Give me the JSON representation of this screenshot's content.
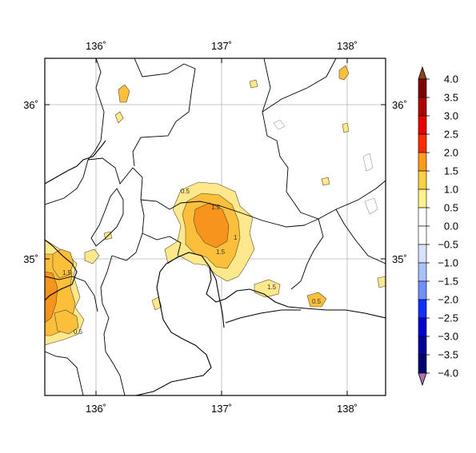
{
  "map": {
    "lon_ticks": [
      "136˚",
      "137˚",
      "138˚"
    ],
    "lat_ticks": [
      "36˚",
      "35˚"
    ],
    "contour_labels": [
      "1.5",
      "0.5",
      "1.5",
      "0.5",
      "1.5",
      "1",
      "1.5",
      "0.5"
    ]
  },
  "colorbar": {
    "labels": [
      "4.0",
      "3.5",
      "3.0",
      "2.5",
      "2.0",
      "1.5",
      "1.0",
      "0.5",
      "0.0",
      "−0.5",
      "−1.0",
      "−1.5",
      "−2.0",
      "−2.5",
      "−3.0",
      "−3.5",
      "−4.0"
    ],
    "colors": [
      "#7f0000",
      "#b00000",
      "#e80000",
      "#ff2a00",
      "#ff9a1a",
      "#ffd040",
      "#fff28c",
      "#ffffff",
      "#ffffff",
      "#d6e2ff",
      "#a9c2ff",
      "#6f8fff",
      "#1030ff",
      "#0000d0",
      "#00009a",
      "#000070"
    ],
    "top_arrow_color": "#8b4513",
    "bottom_arrow_color": "#b070b0"
  },
  "colors": {
    "orange": "#f7941d",
    "light_orange": "#fbbf3c",
    "yellow": "#fde98c"
  }
}
